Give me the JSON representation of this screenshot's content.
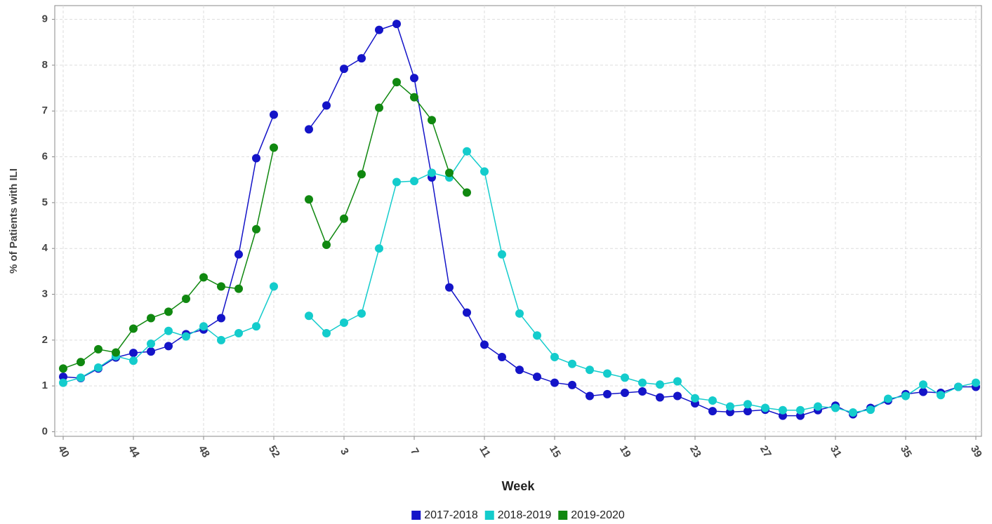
{
  "chart_data": {
    "type": "line",
    "x_label": "Week",
    "y_label": "% of Patients with ILI",
    "categories": [
      "40",
      null,
      null,
      null,
      "44",
      null,
      null,
      null,
      "48",
      null,
      null,
      null,
      "52",
      null,
      null,
      null,
      "3",
      null,
      null,
      null,
      "7",
      null,
      null,
      null,
      "11",
      null,
      null,
      null,
      "15",
      null,
      null,
      null,
      "19",
      null,
      null,
      null,
      "23",
      null,
      null,
      null,
      "27",
      null,
      null,
      null,
      "31",
      null,
      null,
      null,
      "35",
      null,
      null,
      null,
      "39"
    ],
    "series": [
      {
        "name": "2017-2018",
        "color": "#1414c8",
        "values": [
          1.2,
          1.17,
          1.38,
          1.62,
          1.72,
          1.75,
          1.87,
          2.13,
          2.23,
          2.48,
          3.87,
          5.97,
          6.92,
          null,
          6.6,
          7.12,
          7.92,
          8.15,
          8.77,
          8.9,
          7.72,
          5.55,
          3.15,
          2.6,
          1.9,
          1.63,
          1.35,
          1.2,
          1.07,
          1.02,
          0.78,
          0.82,
          0.85,
          0.88,
          0.75,
          0.78,
          0.62,
          0.45,
          0.43,
          0.45,
          0.48,
          0.35,
          0.35,
          0.47,
          0.57,
          0.38,
          0.52,
          0.68,
          0.82,
          0.87,
          0.85,
          0.98,
          0.98
        ]
      },
      {
        "name": "2018-2019",
        "color": "#14cccc",
        "values": [
          1.07,
          1.18,
          1.4,
          1.65,
          1.55,
          1.92,
          2.2,
          2.08,
          2.3,
          2.0,
          2.15,
          2.3,
          3.17,
          null,
          2.53,
          2.15,
          2.38,
          2.58,
          4.0,
          5.45,
          5.47,
          5.65,
          5.55,
          6.12,
          5.68,
          3.87,
          2.58,
          2.1,
          1.63,
          1.48,
          1.35,
          1.27,
          1.18,
          1.07,
          1.03,
          1.1,
          0.73,
          0.68,
          0.55,
          0.6,
          0.52,
          0.47,
          0.47,
          0.55,
          0.52,
          0.42,
          0.48,
          0.72,
          0.78,
          1.03,
          0.8,
          0.98,
          1.07
        ]
      },
      {
        "name": "2019-2020",
        "color": "#108810",
        "values": [
          1.38,
          1.52,
          1.8,
          1.73,
          2.25,
          2.48,
          2.62,
          2.9,
          3.37,
          3.17,
          3.12,
          4.42,
          6.2,
          null,
          5.07,
          4.08,
          4.65,
          5.62,
          7.07,
          7.63,
          7.3,
          6.8,
          5.65,
          5.22,
          null,
          null,
          null,
          null,
          null,
          null,
          null,
          null,
          null,
          null,
          null,
          null,
          null,
          null,
          null,
          null,
          null,
          null,
          null,
          null,
          null,
          null,
          null,
          null,
          null,
          null,
          null,
          null,
          null
        ]
      }
    ],
    "ylim": [
      -0.1,
      9.3
    ],
    "yticks": [
      0,
      1,
      2,
      3,
      4,
      5,
      6,
      7,
      8,
      9
    ],
    "grid": true,
    "legend": "bottom"
  }
}
